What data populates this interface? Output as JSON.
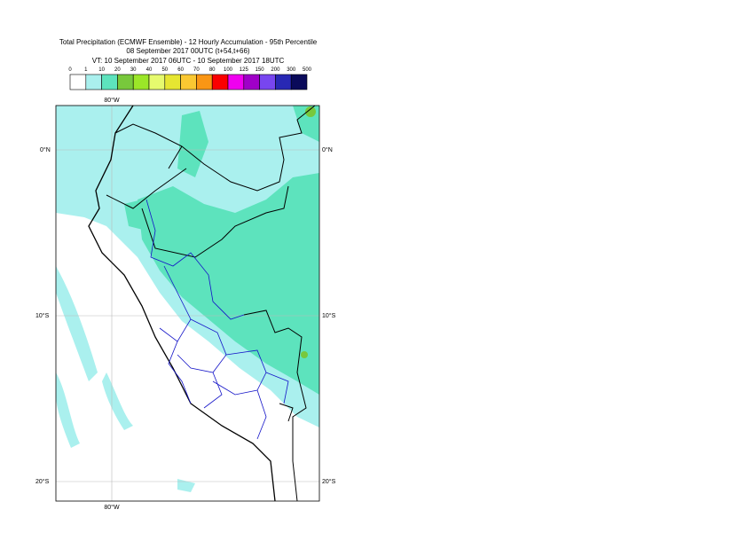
{
  "header": {
    "title": "Total Precipitation (ECMWF Ensemble) - 12 Hourly Accumulation - 95th Percentile",
    "run": "08 September 2017 00UTC (t+54,t+66)",
    "valid": "VT: 10 September 2017 06UTC - 10 September 2017 18UTC"
  },
  "colorbar": {
    "levels": [
      0,
      1,
      10,
      20,
      30,
      40,
      50,
      60,
      70,
      80,
      100,
      125,
      150,
      200,
      300,
      500
    ],
    "colors": [
      "#ffffff",
      "#aaf0ee",
      "#5de3bd",
      "#78c83c",
      "#9be628",
      "#e6fa6e",
      "#e6e632",
      "#fac832",
      "#fa9614",
      "#fa0000",
      "#f000f0",
      "#a000c8",
      "#7846f0",
      "#2828b4",
      "#0a0a5a"
    ]
  },
  "map": {
    "lat_labels": [
      "0°N",
      "10°S",
      "20°S"
    ],
    "lon_labels": [
      "80°W"
    ]
  }
}
